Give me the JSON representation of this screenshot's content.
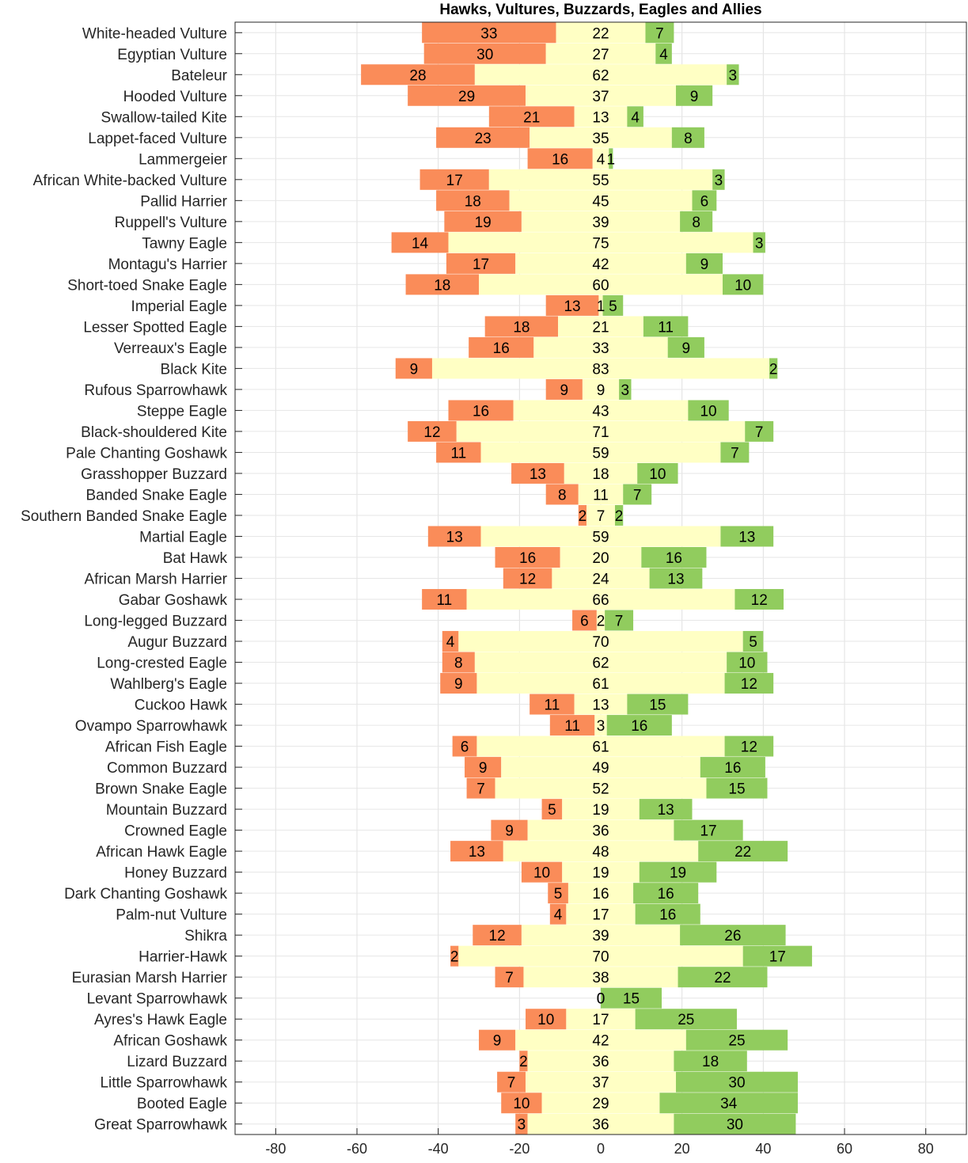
{
  "chart_data": {
    "type": "bar",
    "orientation": "horizontal-diverging-stacked",
    "title": "Hawks, Vultures, Buzzards, Eagles and Allies",
    "xlim": [
      -90,
      90
    ],
    "xticks": [
      -80,
      -60,
      -40,
      -20,
      0,
      20,
      40,
      60,
      80
    ],
    "grid": true,
    "categories": [
      "White-headed Vulture",
      "Egyptian Vulture",
      "Bateleur",
      "Hooded Vulture",
      "Swallow-tailed Kite",
      "Lappet-faced Vulture",
      "Lammergeier",
      "African White-backed Vulture",
      "Pallid Harrier",
      "Ruppell's Vulture",
      "Tawny Eagle",
      "Montagu's Harrier",
      "Short-toed Snake Eagle",
      "Imperial Eagle",
      "Lesser Spotted Eagle",
      "Verreaux's Eagle",
      "Black Kite",
      "Rufous Sparrowhawk",
      "Steppe Eagle",
      "Black-shouldered Kite",
      "Pale Chanting Goshawk",
      "Grasshopper Buzzard",
      "Banded Snake Eagle",
      "Southern Banded Snake Eagle",
      "Martial Eagle",
      "Bat Hawk",
      "African Marsh Harrier",
      "Gabar Goshawk",
      "Long-legged Buzzard",
      "Augur Buzzard",
      "Long-crested Eagle",
      "Wahlberg's Eagle",
      "Cuckoo Hawk",
      "Ovampo Sparrowhawk",
      "African Fish Eagle",
      "Common Buzzard",
      "Brown Snake Eagle",
      "Mountain Buzzard",
      "Crowned Eagle",
      "African Hawk Eagle",
      "Honey Buzzard",
      "Dark Chanting Goshawk",
      "Palm-nut Vulture",
      "Shikra",
      "Harrier-Hawk",
      "Eurasian Marsh Harrier",
      "Levant Sparrowhawk",
      "Ayres's Hawk Eagle",
      "African Goshawk",
      "Lizard Buzzard",
      "Little Sparrowhawk",
      "Booted Eagle",
      "Great Sparrowhawk"
    ],
    "series": [
      {
        "key": "left",
        "color": "#FA8C59",
        "values": [
          33,
          30,
          28,
          29,
          21,
          23,
          16,
          17,
          18,
          19,
          14,
          17,
          18,
          13,
          18,
          16,
          9,
          9,
          16,
          12,
          11,
          13,
          8,
          2,
          13,
          16,
          12,
          11,
          6,
          4,
          8,
          9,
          11,
          11,
          6,
          9,
          7,
          5,
          9,
          13,
          10,
          5,
          4,
          12,
          2,
          7,
          0,
          10,
          9,
          2,
          7,
          10,
          3
        ]
      },
      {
        "key": "middle",
        "color": "#FFFFC4",
        "values": [
          22,
          27,
          62,
          37,
          13,
          35,
          4,
          55,
          45,
          39,
          75,
          42,
          60,
          1,
          21,
          33,
          83,
          9,
          43,
          71,
          59,
          18,
          11,
          7,
          59,
          20,
          24,
          66,
          2,
          70,
          62,
          61,
          13,
          3,
          61,
          49,
          52,
          19,
          36,
          48,
          19,
          16,
          17,
          39,
          70,
          38,
          0,
          17,
          42,
          36,
          37,
          29,
          36
        ]
      },
      {
        "key": "right",
        "color": "#91CC5E",
        "values": [
          7,
          4,
          3,
          9,
          4,
          8,
          1,
          3,
          6,
          8,
          3,
          9,
          10,
          5,
          11,
          9,
          2,
          3,
          10,
          7,
          7,
          10,
          7,
          2,
          13,
          16,
          13,
          12,
          7,
          5,
          10,
          12,
          15,
          16,
          12,
          16,
          15,
          13,
          17,
          22,
          19,
          16,
          16,
          26,
          17,
          22,
          15,
          25,
          25,
          18,
          30,
          34,
          30
        ]
      }
    ]
  }
}
